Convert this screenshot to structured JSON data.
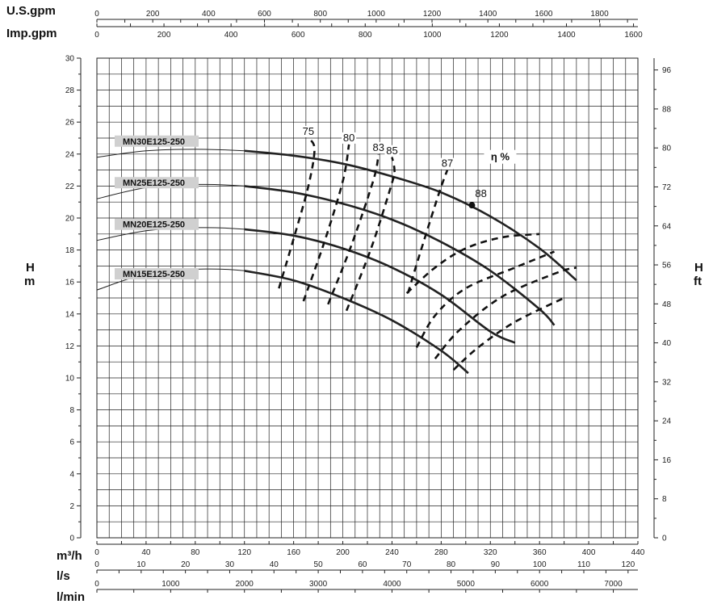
{
  "chart_data": {
    "type": "line",
    "title": "",
    "axes": {
      "flow_m3h": {
        "label": "m³/h",
        "range": [
          0,
          440
        ],
        "ticks": [
          0,
          40,
          80,
          120,
          160,
          200,
          240,
          280,
          320,
          360,
          400,
          440
        ]
      },
      "flow_ls": {
        "label": "l/s",
        "ticks": [
          0,
          10,
          20,
          30,
          40,
          50,
          60,
          70,
          80,
          90,
          100,
          110,
          120
        ]
      },
      "flow_lmin": {
        "label": "l/min",
        "ticks": [
          0,
          1000,
          2000,
          3000,
          4000,
          5000,
          6000,
          7000
        ]
      },
      "flow_usgpm": {
        "label": "U.S.gpm",
        "ticks": [
          0,
          200,
          400,
          600,
          800,
          1000,
          1200,
          1400,
          1600,
          1800
        ]
      },
      "flow_impgpm": {
        "label": "Imp.gpm",
        "ticks": [
          0,
          200,
          400,
          600,
          800,
          1000,
          1200,
          1400,
          1600
        ]
      },
      "head_m": {
        "label_top": "H",
        "label_bottom": "m",
        "range": [
          0,
          30
        ],
        "ticks": [
          0,
          2,
          4,
          6,
          8,
          10,
          12,
          14,
          16,
          18,
          20,
          22,
          24,
          26,
          28,
          30
        ]
      },
      "head_ft": {
        "label_top": "H",
        "label_bottom": "ft",
        "ticks": [
          0,
          8,
          16,
          24,
          32,
          40,
          48,
          56,
          64,
          72,
          80,
          88,
          96
        ]
      }
    },
    "grid": true,
    "series": [
      {
        "name": "MN30E125-250",
        "x": [
          0,
          40,
          80,
          120,
          160,
          200,
          240,
          280,
          320,
          360,
          390
        ],
        "y": [
          23.8,
          24.2,
          24.3,
          24.2,
          23.9,
          23.4,
          22.6,
          21.6,
          20.1,
          18.1,
          16.1
        ],
        "duty_from": 120
      },
      {
        "name": "MN25E125-250",
        "x": [
          0,
          40,
          80,
          120,
          160,
          200,
          240,
          280,
          320,
          360,
          372
        ],
        "y": [
          21.2,
          21.9,
          22.1,
          22.0,
          21.6,
          20.9,
          19.9,
          18.5,
          16.7,
          14.3,
          13.3
        ],
        "duty_from": 120
      },
      {
        "name": "MN20E125-250",
        "x": [
          0,
          40,
          80,
          120,
          160,
          200,
          240,
          280,
          320,
          340
        ],
        "y": [
          18.6,
          19.2,
          19.4,
          19.3,
          18.9,
          18.1,
          16.9,
          15.2,
          12.9,
          12.2
        ],
        "duty_from": 120
      },
      {
        "name": "MN15E125-250",
        "x": [
          0,
          40,
          80,
          120,
          160,
          200,
          240,
          280,
          302
        ],
        "y": [
          15.5,
          16.5,
          16.8,
          16.7,
          16.1,
          15.0,
          13.6,
          11.7,
          10.3
        ],
        "duty_from": 120
      }
    ],
    "efficiency": {
      "label": "η %",
      "curves": [
        {
          "label": "75",
          "points": [
            [
              148,
              15.6
            ],
            [
              160,
              18.7
            ],
            [
              172,
              22.0
            ],
            [
              177,
              24.3
            ],
            [
              172,
              25.0
            ]
          ]
        },
        {
          "label": "80",
          "points": [
            [
              168,
              14.8
            ],
            [
              185,
              18.5
            ],
            [
              200,
              22.3
            ],
            [
              205,
              24.6
            ]
          ]
        },
        {
          "label": "83",
          "points": [
            [
              188,
              14.6
            ],
            [
              207,
              18.3
            ],
            [
              225,
              22.4
            ],
            [
              229,
              24.0
            ]
          ]
        },
        {
          "label": "85",
          "points": [
            [
              203,
              14.2
            ],
            [
              223,
              18.1
            ],
            [
              240,
              22.2
            ],
            [
              242,
              23.0
            ],
            [
              240,
              23.8
            ]
          ]
        },
        {
          "label": "87",
          "points": [
            [
              253,
              15.3
            ],
            [
              262,
              17.6
            ],
            [
              278,
              21.5
            ],
            [
              285,
              23.0
            ]
          ]
        },
        {
          "label": "87",
          "points": [
            [
              252,
              15.3
            ],
            [
              275,
              16.9
            ],
            [
              300,
              18.1
            ],
            [
              330,
              18.8
            ],
            [
              360,
              19.0
            ]
          ]
        },
        {
          "label": "85",
          "points": [
            [
              260,
              11.9
            ],
            [
              275,
              13.9
            ],
            [
              300,
              15.6
            ],
            [
              340,
              16.9
            ],
            [
              372,
              17.9
            ]
          ]
        },
        {
          "label": "83",
          "points": [
            [
              275,
              11.2
            ],
            [
              295,
              13.0
            ],
            [
              330,
              15.1
            ],
            [
              375,
              16.6
            ],
            [
              390,
              16.9
            ]
          ]
        },
        {
          "label": "80",
          "points": [
            [
              290,
              10.5
            ],
            [
              310,
              11.9
            ],
            [
              340,
              13.5
            ],
            [
              380,
              15.0
            ]
          ]
        }
      ],
      "best_point": {
        "label": "88",
        "x": 305,
        "y": 20.8
      }
    }
  }
}
